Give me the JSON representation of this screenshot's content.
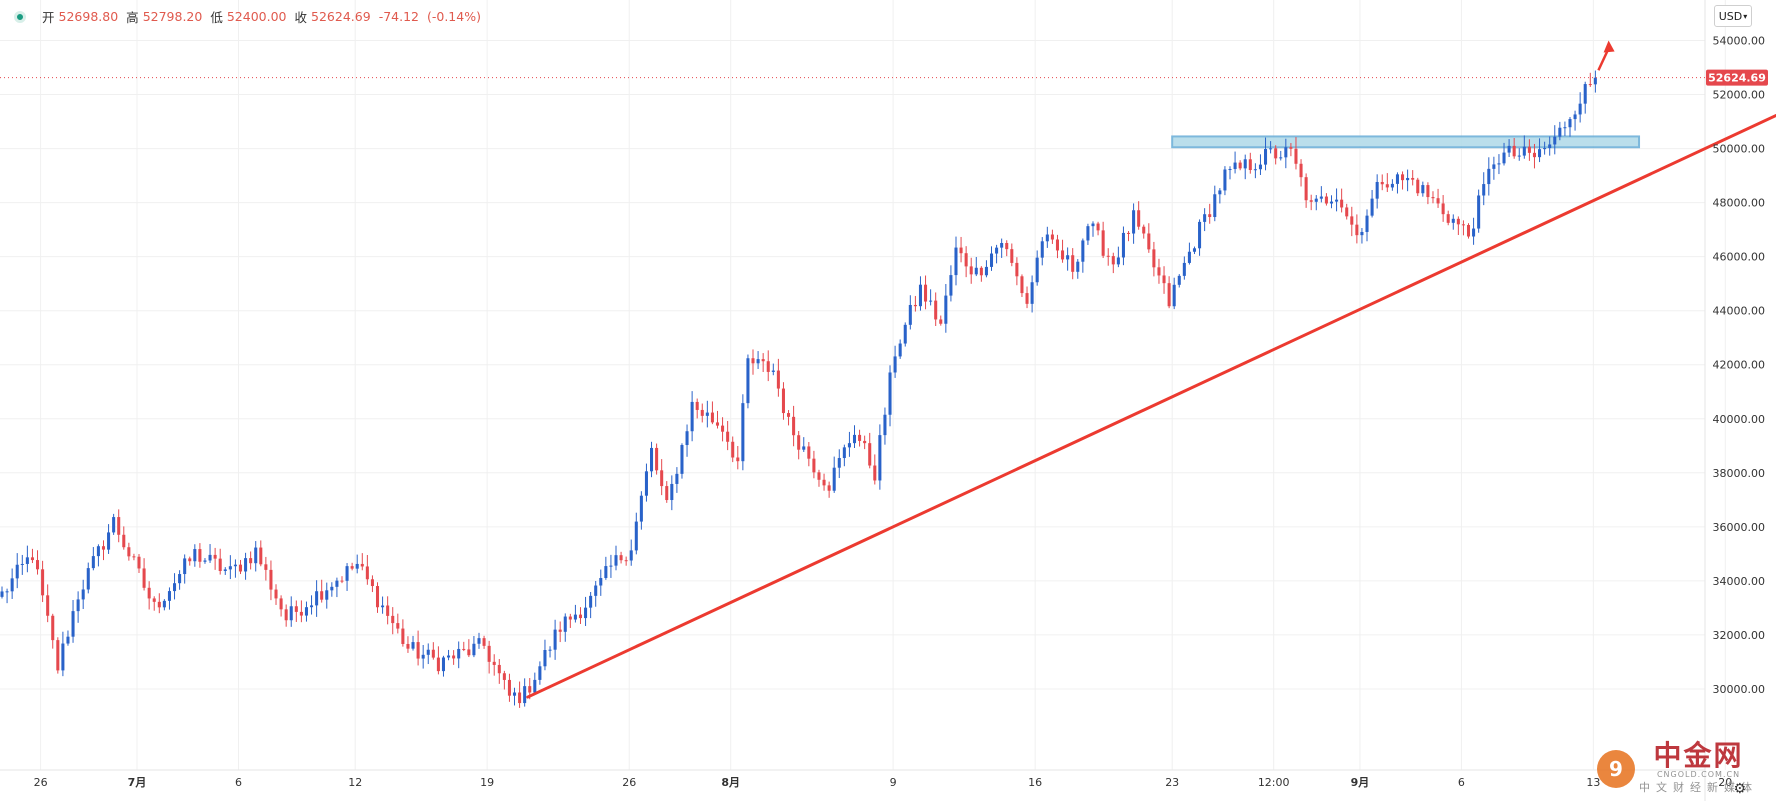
{
  "legend": {
    "open_label": "开",
    "open": "52698.80",
    "high_label": "高",
    "high": "52798.20",
    "low_label": "低",
    "low": "52400.00",
    "close_label": "收",
    "close": "52624.69",
    "change": "-74.12",
    "change_pct": "(-0.14%)"
  },
  "currency": "USD",
  "watermark": {
    "name": "中金网",
    "url": "CNGOLD.COM.CN",
    "sub": "中文财经新媒体"
  },
  "colors": {
    "up": "#2962c9",
    "down": "#e5484d",
    "trend": "#ec3a30",
    "zone_fill": "#b3dbe9",
    "zone_stroke": "#6fb1d9",
    "price_tag": "#e5484d"
  },
  "chart_data": {
    "type": "candlestick",
    "title": "",
    "ylim": [
      27000,
      55500
    ],
    "y_ticks": [
      30000,
      32000,
      34000,
      36000,
      38000,
      40000,
      42000,
      44000,
      46000,
      48000,
      50000,
      52000,
      54000
    ],
    "x_tick_labels": [
      "26",
      "7月",
      "6",
      "12",
      "19",
      "26",
      "8月",
      "9",
      "16",
      "23",
      "12:00",
      "9月",
      "6",
      "13",
      "20"
    ],
    "x_bold_labels": [
      "7月",
      "8月",
      "9月"
    ],
    "x_span_bars": 336,
    "x_tick_positions": [
      8,
      27,
      47,
      70,
      96,
      124,
      144,
      176,
      204,
      231,
      251,
      268,
      288,
      314,
      340
    ],
    "last_price": 52624.69,
    "waypoints": [
      [
        0,
        33500
      ],
      [
        6,
        35000
      ],
      [
        11,
        30800
      ],
      [
        15,
        33500
      ],
      [
        22,
        36200
      ],
      [
        30,
        33000
      ],
      [
        38,
        35000
      ],
      [
        45,
        34300
      ],
      [
        50,
        35100
      ],
      [
        56,
        32600
      ],
      [
        64,
        33800
      ],
      [
        70,
        34600
      ],
      [
        80,
        31500
      ],
      [
        86,
        31000
      ],
      [
        95,
        31600
      ],
      [
        100,
        29700
      ],
      [
        103,
        29800
      ],
      [
        110,
        32300
      ],
      [
        116,
        33300
      ],
      [
        120,
        34500
      ],
      [
        124,
        35300
      ],
      [
        128,
        38800
      ],
      [
        131,
        36700
      ],
      [
        136,
        40500
      ],
      [
        142,
        39700
      ],
      [
        145,
        38400
      ],
      [
        147,
        42100
      ],
      [
        152,
        41800
      ],
      [
        155,
        39800
      ],
      [
        161,
        38000
      ],
      [
        163,
        37600
      ],
      [
        168,
        39600
      ],
      [
        172,
        38000
      ],
      [
        176,
        42500
      ],
      [
        181,
        44800
      ],
      [
        185,
        43500
      ],
      [
        188,
        46200
      ],
      [
        192,
        45400
      ],
      [
        197,
        46600
      ],
      [
        202,
        44300
      ],
      [
        205,
        46700
      ],
      [
        211,
        45600
      ],
      [
        214,
        47200
      ],
      [
        219,
        45800
      ],
      [
        223,
        47400
      ],
      [
        230,
        44300
      ],
      [
        235,
        46600
      ],
      [
        241,
        49000
      ],
      [
        247,
        49500
      ],
      [
        250,
        49800
      ],
      [
        254,
        49800
      ],
      [
        258,
        47800
      ],
      [
        263,
        48400
      ],
      [
        267,
        46800
      ],
      [
        272,
        48900
      ],
      [
        278,
        48800
      ],
      [
        284,
        47700
      ],
      [
        289,
        46800
      ],
      [
        294,
        49600
      ],
      [
        297,
        49800
      ],
      [
        302,
        49700
      ],
      [
        306,
        50300
      ],
      [
        311,
        51900
      ],
      [
        314,
        52624
      ]
    ],
    "trendline": {
      "from": [
        104,
        29700
      ],
      "to": [
        368,
        52800
      ]
    },
    "resistance_zone": {
      "x_start": 231,
      "x_end": 323,
      "low": 50050,
      "high": 50450
    },
    "annotation_arrow": {
      "from": [
        315,
        52900
      ],
      "to": [
        317,
        54000
      ]
    }
  }
}
